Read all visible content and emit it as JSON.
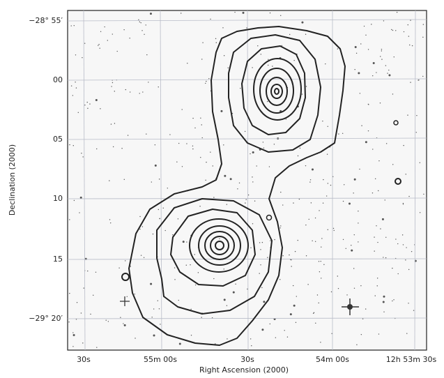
{
  "figure": {
    "y_axis": {
      "label": "Declination (2000)",
      "ticks": [
        "−28° 55′",
        "00",
        "05",
        "10",
        "15",
        "−29° 20′"
      ]
    },
    "x_axis": {
      "label": "Right Ascension (2000)",
      "ticks": [
        "30s",
        "55m 00s",
        "30s",
        "54m 00s",
        "12h 53m 30s"
      ]
    }
  }
}
